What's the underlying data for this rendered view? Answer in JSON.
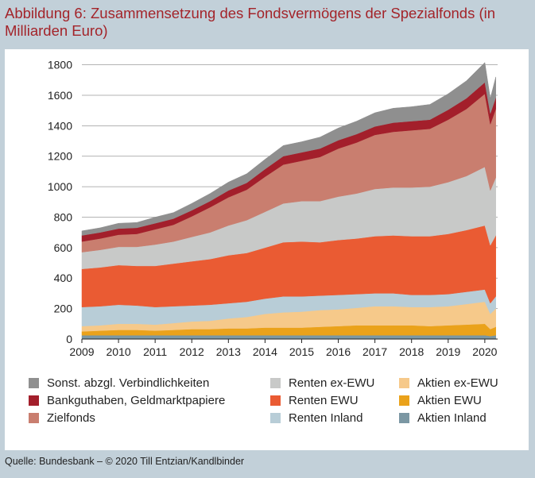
{
  "title": "Abbildung 6: Zusammensetzung des Fondsvermögens der Spezialfonds (in Milliarden Euro)",
  "source": "Quelle: Bundesbank – © 2020 Till Entzian/Kandlbinder",
  "chart_data": {
    "type": "area",
    "stacked": true,
    "x": [
      2009.0,
      2009.5,
      2010.0,
      2010.5,
      2011.0,
      2011.5,
      2012.0,
      2012.5,
      2013.0,
      2013.5,
      2014.0,
      2014.5,
      2015.0,
      2015.5,
      2016.0,
      2016.5,
      2017.0,
      2017.5,
      2018.0,
      2018.5,
      2019.0,
      2019.5,
      2020.0,
      2020.15,
      2020.3
    ],
    "xticks": [
      "2009",
      "2010",
      "2011",
      "2012",
      "2013",
      "2014",
      "2015",
      "2016",
      "2017",
      "2018",
      "2019",
      "2020"
    ],
    "xlim": [
      2009,
      2020.35
    ],
    "ylim": [
      0,
      1850
    ],
    "yticks": [
      0,
      200,
      400,
      600,
      800,
      1000,
      1200,
      1400,
      1600,
      1800
    ],
    "grid": "horizontal",
    "legend_position": "bottom",
    "series": [
      {
        "name": "Aktien Inland",
        "color": "#7b97a3",
        "values": [
          25,
          25,
          25,
          25,
          25,
          25,
          25,
          25,
          25,
          25,
          25,
          25,
          25,
          25,
          25,
          25,
          25,
          25,
          25,
          25,
          25,
          25,
          25,
          20,
          25
        ]
      },
      {
        "name": "Aktien EWU",
        "color": "#eaa21b",
        "values": [
          25,
          30,
          35,
          35,
          30,
          35,
          40,
          40,
          45,
          45,
          50,
          50,
          50,
          55,
          60,
          65,
          65,
          65,
          65,
          60,
          65,
          70,
          75,
          45,
          55
        ]
      },
      {
        "name": "Aktien ex-EWU",
        "color": "#f6c98a",
        "values": [
          35,
          35,
          40,
          40,
          40,
          45,
          50,
          55,
          65,
          75,
          90,
          100,
          105,
          110,
          110,
          115,
          125,
          125,
          120,
          125,
          125,
          135,
          145,
          100,
          120
        ]
      },
      {
        "name": "Renten Inland",
        "color": "#b8cdd7",
        "values": [
          125,
          125,
          125,
          120,
          115,
          110,
          105,
          105,
          100,
          100,
          100,
          105,
          100,
          95,
          95,
          90,
          85,
          85,
          80,
          80,
          80,
          80,
          80,
          70,
          80
        ]
      },
      {
        "name": "Renten EWU",
        "color": "#ea5b33",
        "values": [
          250,
          255,
          260,
          260,
          270,
          280,
          290,
          300,
          315,
          320,
          335,
          355,
          360,
          350,
          360,
          365,
          375,
          380,
          385,
          385,
          395,
          405,
          420,
          380,
          400
        ]
      },
      {
        "name": "Renten ex-EWU",
        "color": "#c8c9c8",
        "values": [
          110,
          115,
          120,
          125,
          140,
          145,
          160,
          175,
          195,
          215,
          235,
          255,
          265,
          270,
          285,
          295,
          310,
          315,
          320,
          325,
          340,
          355,
          385,
          360,
          380
        ]
      },
      {
        "name": "Zielfonds",
        "color": "#c97e6f",
        "values": [
          70,
          75,
          80,
          85,
          100,
          110,
          135,
          165,
          185,
          200,
          230,
          255,
          265,
          290,
          315,
          335,
          355,
          365,
          375,
          380,
          410,
          440,
          480,
          435,
          450
        ]
      },
      {
        "name": "Bankguthaben, Geldmarktpapiere",
        "color": "#a31f2b",
        "values": [
          40,
          40,
          40,
          40,
          40,
          40,
          40,
          40,
          45,
          45,
          50,
          55,
          55,
          55,
          55,
          55,
          55,
          60,
          60,
          60,
          65,
          70,
          75,
          70,
          75
        ]
      },
      {
        "name": "Sonst. abzgl. Verbindlichkeiten",
        "color": "#8f8f8f",
        "values": [
          30,
          30,
          35,
          35,
          40,
          40,
          45,
          50,
          55,
          60,
          65,
          70,
          70,
          75,
          80,
          85,
          90,
          95,
          95,
          100,
          105,
          115,
          130,
          100,
          135
        ]
      }
    ]
  },
  "legend": [
    {
      "label": "Sonst. abzgl. Verbindlichkeiten",
      "color": "#8f8f8f"
    },
    {
      "label": "Bankguthaben, Geldmarktpapiere",
      "color": "#a31f2b"
    },
    {
      "label": "Zielfonds",
      "color": "#c97e6f"
    },
    {
      "label": "Renten ex-EWU",
      "color": "#c8c9c8"
    },
    {
      "label": "Renten EWU",
      "color": "#ea5b33"
    },
    {
      "label": "Renten Inland",
      "color": "#b8cdd7"
    },
    {
      "label": "Aktien ex-EWU",
      "color": "#f6c98a"
    },
    {
      "label": "Aktien EWU",
      "color": "#eaa21b"
    },
    {
      "label": "Aktien Inland",
      "color": "#7b97a3"
    }
  ]
}
